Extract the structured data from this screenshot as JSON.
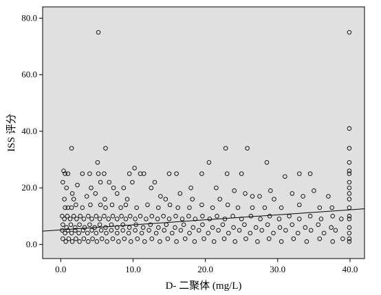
{
  "chart_data": {
    "type": "scatter",
    "xlabel": "D- 二聚体 (mg/L)",
    "ylabel": "ISS 评分",
    "xlim": [
      -2.5,
      42
    ],
    "ylim": [
      -5,
      84
    ],
    "xticks": [
      "0.0",
      "10.0",
      "20.0",
      "30.0",
      "40.0"
    ],
    "yticks": [
      "0.0",
      "20.0",
      "40.0",
      "60.0",
      "80.0"
    ],
    "grid": false,
    "plot_background": "#e0e0e0",
    "marker_color": "#000000",
    "fit_line": {
      "x": [
        -2.5,
        42
      ],
      "y": [
        4.7,
        12.6
      ]
    },
    "series": [
      {
        "points": [
          [
            5.2,
            75
          ],
          [
            39.9,
            75
          ],
          [
            39.9,
            41
          ],
          [
            39.9,
            34
          ],
          [
            39.9,
            29
          ],
          [
            39.9,
            26
          ],
          [
            39.9,
            25
          ],
          [
            39.9,
            22
          ],
          [
            39.9,
            20
          ],
          [
            39.9,
            18
          ],
          [
            39.9,
            16
          ],
          [
            39.9,
            13
          ],
          [
            39.9,
            10
          ],
          [
            39.9,
            9
          ],
          [
            39.9,
            6
          ],
          [
            39.9,
            4
          ],
          [
            39.9,
            2
          ],
          [
            39.9,
            1
          ],
          [
            1.5,
            34
          ],
          [
            6.2,
            34
          ],
          [
            22.8,
            34
          ],
          [
            25.8,
            34
          ],
          [
            5.1,
            29
          ],
          [
            20.5,
            29
          ],
          [
            28.5,
            29
          ],
          [
            10.2,
            27
          ],
          [
            0.4,
            26
          ],
          [
            0.6,
            25
          ],
          [
            1.0,
            25
          ],
          [
            3.0,
            25
          ],
          [
            4.0,
            25
          ],
          [
            5.2,
            25
          ],
          [
            6.0,
            25
          ],
          [
            9.5,
            25
          ],
          [
            11.0,
            25
          ],
          [
            11.5,
            25
          ],
          [
            15.0,
            25
          ],
          [
            16.0,
            25
          ],
          [
            19.5,
            25
          ],
          [
            23.0,
            25
          ],
          [
            25.0,
            25
          ],
          [
            33.0,
            25
          ],
          [
            34.5,
            25
          ],
          [
            0.3,
            22
          ],
          [
            5.5,
            22
          ],
          [
            6.7,
            22
          ],
          [
            9.9,
            22
          ],
          [
            13.0,
            22
          ],
          [
            31.0,
            24
          ],
          [
            0.8,
            20
          ],
          [
            2.3,
            21
          ],
          [
            4.2,
            20
          ],
          [
            7.3,
            20
          ],
          [
            8.7,
            20
          ],
          [
            12.5,
            20
          ],
          [
            18.0,
            20
          ],
          [
            21.5,
            20
          ],
          [
            24.0,
            19
          ],
          [
            29.0,
            19
          ],
          [
            32.0,
            18
          ],
          [
            35.0,
            19
          ],
          [
            1.6,
            18
          ],
          [
            3.6,
            17
          ],
          [
            4.8,
            18
          ],
          [
            7.8,
            18
          ],
          [
            13.8,
            17
          ],
          [
            16.5,
            18
          ],
          [
            25.5,
            18
          ],
          [
            26.5,
            17
          ],
          [
            27.5,
            17
          ],
          [
            33.5,
            17
          ],
          [
            37.0,
            17
          ],
          [
            0.5,
            16
          ],
          [
            1.8,
            16
          ],
          [
            6.1,
            16
          ],
          [
            9.2,
            16
          ],
          [
            14.5,
            16
          ],
          [
            18.2,
            16
          ],
          [
            22.0,
            16
          ],
          [
            29.5,
            16
          ],
          [
            0.6,
            13
          ],
          [
            1.0,
            13
          ],
          [
            1.5,
            13
          ],
          [
            2.1,
            14
          ],
          [
            3.0,
            13
          ],
          [
            4.1,
            14
          ],
          [
            5.5,
            14
          ],
          [
            6.2,
            13
          ],
          [
            7.1,
            14
          ],
          [
            8.3,
            13
          ],
          [
            9.0,
            14
          ],
          [
            10.5,
            13
          ],
          [
            12.0,
            14
          ],
          [
            13.5,
            13
          ],
          [
            15.1,
            14
          ],
          [
            16.2,
            13
          ],
          [
            17.8,
            13
          ],
          [
            19.5,
            14
          ],
          [
            21.0,
            13
          ],
          [
            23.1,
            14
          ],
          [
            24.5,
            13
          ],
          [
            26.5,
            13
          ],
          [
            28.2,
            13
          ],
          [
            30.5,
            13
          ],
          [
            33.0,
            14
          ],
          [
            35.8,
            13
          ],
          [
            37.5,
            13
          ],
          [
            0.2,
            10
          ],
          [
            0.5,
            9
          ],
          [
            0.9,
            10
          ],
          [
            1.3,
            9
          ],
          [
            1.8,
            10
          ],
          [
            2.2,
            9
          ],
          [
            2.7,
            10
          ],
          [
            3.2,
            9
          ],
          [
            3.8,
            10
          ],
          [
            4.3,
            9
          ],
          [
            4.9,
            10
          ],
          [
            5.4,
            9
          ],
          [
            6.0,
            10
          ],
          [
            6.6,
            9
          ],
          [
            7.2,
            10
          ],
          [
            7.8,
            9
          ],
          [
            8.4,
            10
          ],
          [
            9.0,
            9
          ],
          [
            9.6,
            10
          ],
          [
            10.3,
            9
          ],
          [
            11.0,
            10
          ],
          [
            11.8,
            9
          ],
          [
            12.6,
            10
          ],
          [
            13.4,
            9
          ],
          [
            14.2,
            10
          ],
          [
            15.0,
            9
          ],
          [
            15.9,
            10
          ],
          [
            16.8,
            9
          ],
          [
            17.7,
            10
          ],
          [
            18.6,
            9
          ],
          [
            19.6,
            10
          ],
          [
            20.6,
            9
          ],
          [
            21.6,
            10
          ],
          [
            22.7,
            9
          ],
          [
            23.8,
            10
          ],
          [
            25.0,
            9
          ],
          [
            26.3,
            10
          ],
          [
            27.6,
            9
          ],
          [
            28.9,
            10
          ],
          [
            30.2,
            9
          ],
          [
            31.6,
            10
          ],
          [
            33.0,
            9
          ],
          [
            34.5,
            10
          ],
          [
            36.0,
            9
          ],
          [
            37.6,
            10
          ],
          [
            38.8,
            9
          ],
          [
            0.3,
            7
          ],
          [
            0.8,
            6
          ],
          [
            1.4,
            7
          ],
          [
            2.0,
            6
          ],
          [
            2.6,
            7
          ],
          [
            3.3,
            6
          ],
          [
            4.0,
            7
          ],
          [
            4.7,
            6
          ],
          [
            5.4,
            7
          ],
          [
            6.2,
            6
          ],
          [
            7.0,
            7
          ],
          [
            7.8,
            6
          ],
          [
            8.6,
            7
          ],
          [
            9.5,
            6
          ],
          [
            10.4,
            7
          ],
          [
            11.4,
            6
          ],
          [
            12.4,
            7
          ],
          [
            13.5,
            6
          ],
          [
            14.6,
            7
          ],
          [
            15.8,
            6
          ],
          [
            17.0,
            7
          ],
          [
            18.3,
            6
          ],
          [
            19.6,
            7
          ],
          [
            21.0,
            6
          ],
          [
            22.4,
            7
          ],
          [
            23.9,
            6
          ],
          [
            25.4,
            7
          ],
          [
            27.0,
            6
          ],
          [
            28.6,
            7
          ],
          [
            30.3,
            6
          ],
          [
            32.0,
            7
          ],
          [
            33.8,
            6
          ],
          [
            35.6,
            7
          ],
          [
            37.4,
            6
          ],
          [
            0.2,
            5
          ],
          [
            0.6,
            4
          ],
          [
            1.0,
            5
          ],
          [
            1.5,
            4
          ],
          [
            2.0,
            5
          ],
          [
            2.5,
            4
          ],
          [
            3.1,
            5
          ],
          [
            3.7,
            4
          ],
          [
            4.3,
            5
          ],
          [
            4.9,
            4
          ],
          [
            5.6,
            5
          ],
          [
            6.3,
            4
          ],
          [
            7.0,
            5
          ],
          [
            7.8,
            4
          ],
          [
            8.6,
            5
          ],
          [
            9.4,
            4
          ],
          [
            10.3,
            5
          ],
          [
            11.2,
            4
          ],
          [
            12.2,
            5
          ],
          [
            13.2,
            4
          ],
          [
            14.3,
            5
          ],
          [
            15.4,
            4
          ],
          [
            16.6,
            5
          ],
          [
            17.8,
            4
          ],
          [
            19.1,
            5
          ],
          [
            20.4,
            4
          ],
          [
            21.8,
            5
          ],
          [
            23.2,
            4
          ],
          [
            24.7,
            5
          ],
          [
            26.2,
            4
          ],
          [
            27.8,
            5
          ],
          [
            29.4,
            4
          ],
          [
            31.1,
            5
          ],
          [
            32.8,
            4
          ],
          [
            34.6,
            5
          ],
          [
            36.4,
            4
          ],
          [
            38.0,
            5
          ],
          [
            0.3,
            2
          ],
          [
            0.7,
            1
          ],
          [
            1.1,
            2
          ],
          [
            1.6,
            1
          ],
          [
            2.1,
            2
          ],
          [
            2.6,
            1
          ],
          [
            3.2,
            2
          ],
          [
            3.8,
            1
          ],
          [
            4.4,
            2
          ],
          [
            5.0,
            1
          ],
          [
            5.7,
            2
          ],
          [
            6.4,
            1
          ],
          [
            7.2,
            2
          ],
          [
            8.0,
            1
          ],
          [
            8.8,
            2
          ],
          [
            9.7,
            1
          ],
          [
            10.6,
            2
          ],
          [
            11.6,
            1
          ],
          [
            12.6,
            2
          ],
          [
            13.7,
            1
          ],
          [
            14.8,
            2
          ],
          [
            16.0,
            1
          ],
          [
            17.2,
            2
          ],
          [
            18.5,
            1
          ],
          [
            19.8,
            2
          ],
          [
            21.2,
            1
          ],
          [
            22.6,
            2
          ],
          [
            24.1,
            1
          ],
          [
            25.6,
            2
          ],
          [
            27.2,
            1
          ],
          [
            28.8,
            2
          ],
          [
            30.5,
            1
          ],
          [
            32.2,
            2
          ],
          [
            34.0,
            1
          ],
          [
            35.8,
            2
          ],
          [
            37.6,
            1
          ],
          [
            39.0,
            2
          ]
        ]
      }
    ]
  }
}
